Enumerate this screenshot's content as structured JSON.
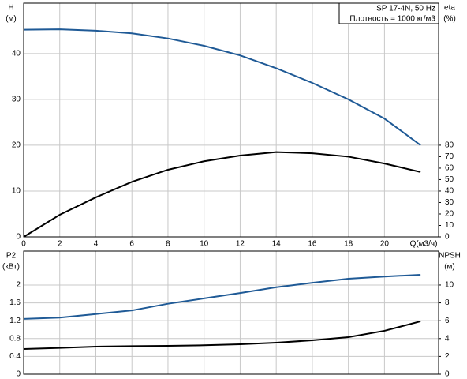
{
  "chart_data": [
    {
      "type": "line",
      "ylabel": "H",
      "yunit": "(м)",
      "y2label": "eta",
      "y2unit": "(%)",
      "xlabel": "Q(м3/ч)",
      "annotations": [
        "SP 17-4N, 50 Hz",
        "Плотность = 1000 кг/м3"
      ],
      "x": [
        0,
        2,
        4,
        6,
        8,
        10,
        12,
        14,
        16,
        18,
        20,
        22
      ],
      "xlim": [
        0,
        23
      ],
      "xticks": [
        0,
        2,
        4,
        6,
        8,
        10,
        12,
        14,
        16,
        18,
        20
      ],
      "ylim": [
        0,
        51
      ],
      "yticks": [
        0,
        10,
        20,
        30,
        40
      ],
      "y2lim": [
        0,
        204
      ],
      "y2ticks": [
        0,
        10,
        20,
        30,
        40,
        50,
        60,
        70,
        80
      ],
      "grid": true,
      "series": [
        {
          "color": "#1f5a96",
          "values": [
            45.2,
            45.3,
            45.0,
            44.4,
            43.3,
            41.7,
            39.6,
            36.8,
            33.6,
            30.0,
            25.8,
            20.0
          ]
        },
        {
          "color": "#000000",
          "axis": "y2",
          "values": [
            0,
            19.3,
            34.5,
            48,
            58.6,
            66,
            71,
            74,
            73,
            70,
            64,
            56.6
          ]
        }
      ]
    },
    {
      "type": "line",
      "ylabel": "P2",
      "yunit": "(кВт)",
      "y2label": "NPSH",
      "y2unit": "(м)",
      "x": [
        0,
        2,
        4,
        6,
        8,
        10,
        12,
        14,
        16,
        18,
        20,
        22
      ],
      "ylim": [
        0,
        2.76
      ],
      "yticks": [
        0,
        0.4,
        0.8,
        1.2,
        1.6,
        2
      ],
      "y2lim": [
        0,
        13.8
      ],
      "y2ticks": [
        0,
        2,
        4,
        6,
        8,
        10
      ],
      "grid": true,
      "series": [
        {
          "color": "#1f5a96",
          "values": [
            1.24,
            1.27,
            1.35,
            1.43,
            1.58,
            1.7,
            1.82,
            1.95,
            2.05,
            2.14,
            2.19,
            2.23
          ]
        },
        {
          "color": "#000000",
          "axis": "y2",
          "values": [
            2.83,
            2.95,
            3.1,
            3.15,
            3.19,
            3.25,
            3.36,
            3.54,
            3.8,
            4.16,
            4.87,
            5.93
          ]
        }
      ]
    }
  ]
}
